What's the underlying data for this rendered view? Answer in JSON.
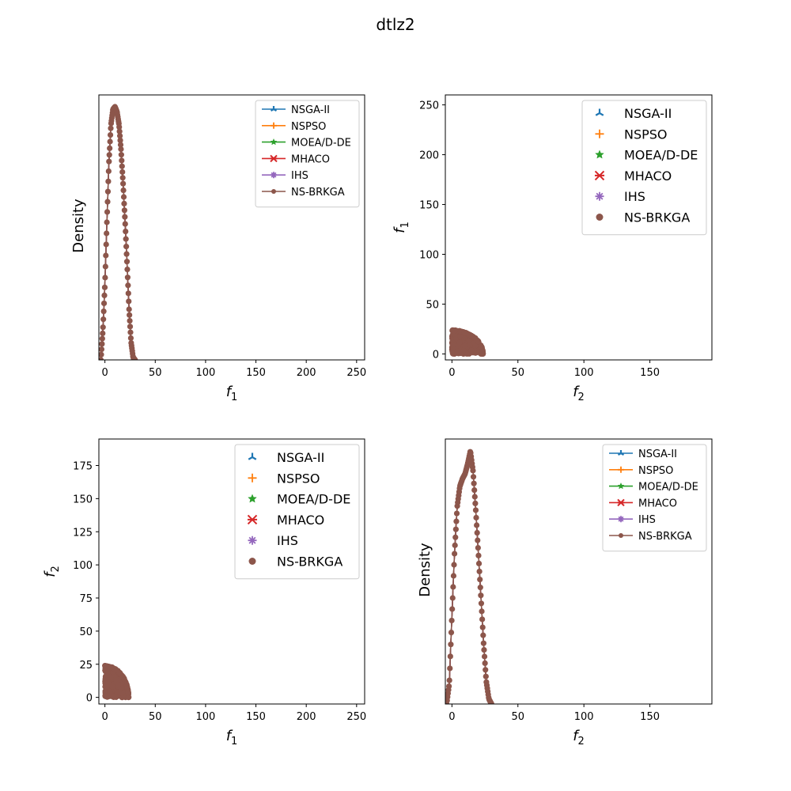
{
  "figure": {
    "title": "dtlz2"
  },
  "colors": {
    "NSGA-II": "#1f77b4",
    "NSPSO": "#ff7f0e",
    "MOEA/D-DE": "#2ca02c",
    "MHACO": "#d62728",
    "IHS": "#9467bd",
    "NS-BRKGA": "#8c564b"
  },
  "chart_data": [
    {
      "type": "line",
      "subplot": "top-left",
      "xlabel": "f1",
      "ylabel": "Density",
      "xlim": [
        -6,
        258
      ],
      "xticks": [
        0,
        50,
        100,
        150,
        200,
        250
      ],
      "yticks_hidden": true,
      "legend_placement": "top-right",
      "series_names": [
        "NSGA-II",
        "NSPSO",
        "MOEA/D-DE",
        "MHACO",
        "IHS",
        "NS-BRKGA"
      ],
      "density_curve": {
        "x": [
          -4,
          -2,
          0,
          2,
          4,
          6,
          8,
          10,
          12,
          14,
          16,
          18,
          20,
          22,
          24,
          26,
          28,
          30
        ],
        "relative_density": [
          0.0,
          0.12,
          0.3,
          0.55,
          0.78,
          0.93,
          0.99,
          1.0,
          0.98,
          0.93,
          0.83,
          0.7,
          0.55,
          0.38,
          0.2,
          0.07,
          0.01,
          0.0
        ]
      }
    },
    {
      "type": "scatter",
      "subplot": "top-right",
      "xlabel": "f2",
      "ylabel": "f1",
      "xlim": [
        -5,
        197
      ],
      "ylim": [
        -6,
        260
      ],
      "xticks": [
        0,
        50,
        100,
        150
      ],
      "yticks": [
        0,
        50,
        100,
        150,
        200,
        250
      ],
      "legend_placement": "top-right",
      "series_names": [
        "NSGA-II",
        "NSPSO",
        "MOEA/D-DE",
        "MHACO",
        "IHS",
        "NS-BRKGA"
      ],
      "points_extent": {
        "x": [
          0,
          25
        ],
        "y": [
          0,
          25
        ]
      }
    },
    {
      "type": "scatter",
      "subplot": "bottom-left",
      "xlabel": "f1",
      "ylabel": "f2",
      "xlim": [
        -6,
        258
      ],
      "ylim": [
        -5,
        195
      ],
      "xticks": [
        0,
        50,
        100,
        150,
        200,
        250
      ],
      "yticks": [
        0,
        25,
        50,
        75,
        100,
        125,
        150,
        175
      ],
      "legend_placement": "top-right",
      "series_names": [
        "NSGA-II",
        "NSPSO",
        "MOEA/D-DE",
        "MHACO",
        "IHS",
        "NS-BRKGA"
      ],
      "points_extent": {
        "x": [
          0,
          25
        ],
        "y": [
          0,
          25
        ]
      }
    },
    {
      "type": "line",
      "subplot": "bottom-right",
      "xlabel": "f2",
      "ylabel": "Density",
      "xlim": [
        -5,
        197
      ],
      "xticks": [
        0,
        50,
        100,
        150
      ],
      "yticks_hidden": true,
      "legend_placement": "top-right",
      "series_names": [
        "NSGA-II",
        "NSPSO",
        "MOEA/D-DE",
        "MHACO",
        "IHS",
        "NS-BRKGA"
      ],
      "density_curve": {
        "x": [
          -4,
          -2,
          0,
          2,
          4,
          6,
          8,
          10,
          12,
          14,
          16,
          18,
          20,
          22,
          24,
          26,
          28,
          30
        ],
        "relative_density": [
          0.0,
          0.08,
          0.35,
          0.6,
          0.78,
          0.86,
          0.89,
          0.91,
          0.95,
          1.0,
          0.92,
          0.77,
          0.6,
          0.42,
          0.24,
          0.09,
          0.02,
          0.0
        ]
      }
    }
  ]
}
